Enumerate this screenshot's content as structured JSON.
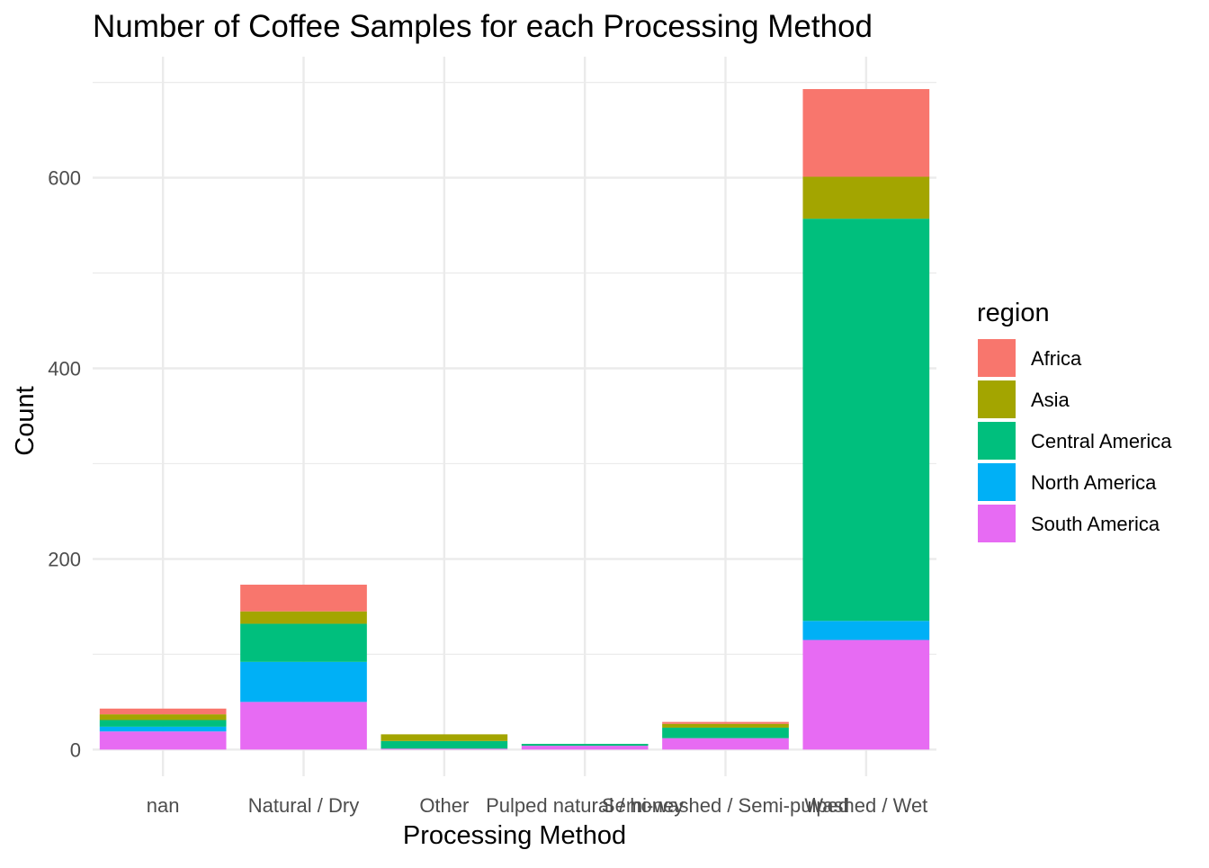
{
  "chart_data": {
    "type": "bar",
    "stacked": true,
    "title": "Number of Coffee Samples for each Processing Method",
    "xlabel": "Processing Method",
    "ylabel": "Count",
    "categories": [
      "nan",
      "Natural / Dry",
      "Other",
      "Pulped natural / honey",
      "Semi-washed / Semi-pulped",
      "Washed / Wet"
    ],
    "y_ticks": [
      0,
      200,
      400,
      600
    ],
    "y_tick_labels": [
      "0",
      "200",
      "400",
      "600"
    ],
    "ylim": [
      -28,
      727
    ],
    "grid": true,
    "legend": {
      "title": "region",
      "position": "right"
    },
    "series": [
      {
        "name": "South America",
        "color": "#E76BF3",
        "values": [
          19,
          50,
          1,
          4,
          12,
          115
        ]
      },
      {
        "name": "North America",
        "color": "#00B0F6",
        "values": [
          5,
          42,
          0,
          0,
          0,
          20
        ]
      },
      {
        "name": "Central America",
        "color": "#00BF7D",
        "values": [
          7,
          40,
          8,
          2,
          11,
          422
        ]
      },
      {
        "name": "Asia",
        "color": "#A3A500",
        "values": [
          6,
          13,
          7,
          0,
          4,
          44
        ]
      },
      {
        "name": "Africa",
        "color": "#F8766D",
        "values": [
          6,
          28,
          0,
          0,
          2,
          92
        ]
      }
    ],
    "legend_order": [
      "Africa",
      "Asia",
      "Central America",
      "North America",
      "South America"
    ]
  }
}
